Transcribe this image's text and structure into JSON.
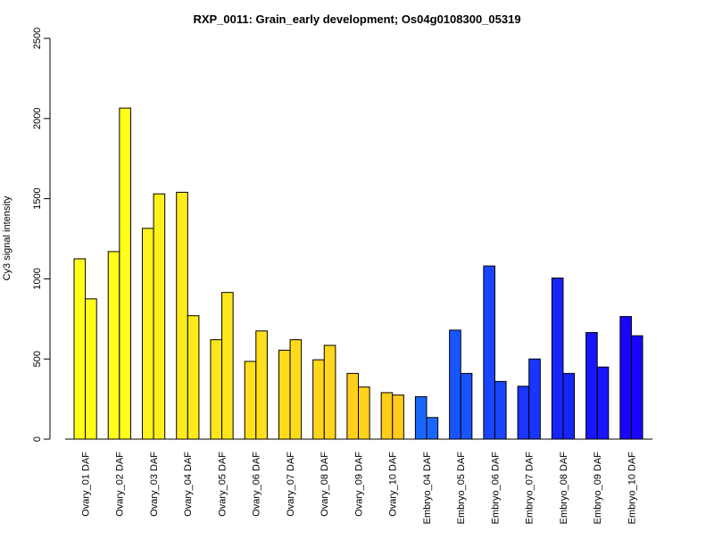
{
  "chart_data": {
    "type": "bar",
    "title": "RXP_0011: Grain_early development; Os04g0108300_05319",
    "xlabel": "",
    "ylabel": "Cy3 signal intensity",
    "ylim": [
      0,
      2500
    ],
    "yticks": [
      0,
      500,
      1000,
      1500,
      2000,
      2500
    ],
    "grid": false,
    "categories": [
      "Ovary_01 DAF",
      "Ovary_02 DAF",
      "Ovary_03 DAF",
      "Ovary_04 DAF",
      "Ovary_05 DAF",
      "Ovary_06 DAF",
      "Ovary_07 DAF",
      "Ovary_08 DAF",
      "Ovary_09 DAF",
      "Ovary_10 DAF",
      "Embryo_04 DAF",
      "Embryo_05 DAF",
      "Embryo_06 DAF",
      "Embryo_07 DAF",
      "Embryo_08 DAF",
      "Embryo_09 DAF",
      "Embryo_10 DAF"
    ],
    "series": [
      {
        "values": [
          1125,
          1170,
          1315,
          1540,
          620,
          485,
          555,
          495,
          410,
          290,
          265,
          680,
          1080,
          330,
          1005,
          665,
          765
        ]
      },
      {
        "values": [
          875,
          2065,
          1530,
          770,
          915,
          675,
          620,
          585,
          325,
          275,
          135,
          410,
          360,
          500,
          410,
          450,
          645
        ]
      }
    ],
    "colors": [
      "#FFFF1A",
      "#FFFF1A",
      "#FFF01A",
      "#FFEB1A",
      "#FFE61A",
      "#FFE01A",
      "#FFDB1A",
      "#FFD61A",
      "#FFD11A",
      "#FFCC1A",
      "#1966FF",
      "#1955FF",
      "#1945FF",
      "#1935FF",
      "#1925FF",
      "#1915FF",
      "#1905FF"
    ]
  }
}
